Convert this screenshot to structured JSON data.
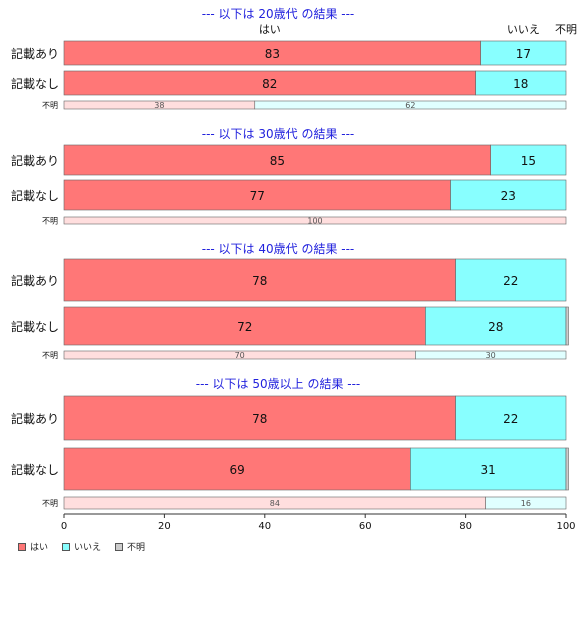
{
  "colors": {
    "yes": "#ff7777",
    "no": "#88ffff",
    "unknown": "#cccccc",
    "yes_light": "#ffdede",
    "no_light": "#e0ffff",
    "title": "#2222dd",
    "border": "#666666"
  },
  "chart_data": {
    "type": "bar",
    "orientation": "horizontal",
    "stacked": true,
    "xlim": [
      0,
      100
    ],
    "xticks": [
      "0",
      "20",
      "40",
      "60",
      "80",
      "100"
    ],
    "column_labels": {
      "yes": "はい",
      "no": "いいえ",
      "unknown": "不明"
    },
    "legend": [
      {
        "key": "yes",
        "label": "はい"
      },
      {
        "key": "no",
        "label": "いいえ"
      },
      {
        "key": "unknown",
        "label": "不明"
      }
    ],
    "panels": [
      {
        "title": "--- 以下は 20歳代 の結果 ---",
        "rows": [
          {
            "label": "記載あり",
            "yes": 83,
            "no": 17,
            "unknown": 0
          },
          {
            "label": "記載なし",
            "yes": 82,
            "no": 18,
            "unknown": 0
          },
          {
            "label": "不明",
            "small": true,
            "yes": 38,
            "no": 62,
            "unknown": 0
          }
        ]
      },
      {
        "title": "--- 以下は 30歳代 の結果 ---",
        "rows": [
          {
            "label": "記載あり",
            "yes": 85,
            "no": 15,
            "unknown": 0
          },
          {
            "label": "記載なし",
            "yes": 77,
            "no": 23,
            "unknown": 0
          },
          {
            "label": "不明",
            "small": true,
            "yes": 100,
            "no": 0,
            "unknown": 0
          }
        ]
      },
      {
        "title": "--- 以下は 40歳代 の結果 ---",
        "rows": [
          {
            "label": "記載あり",
            "yes": 78,
            "no": 22,
            "unknown": 0
          },
          {
            "label": "記載なし",
            "yes": 72,
            "no": 28,
            "unknown": 0.5
          },
          {
            "label": "不明",
            "small": true,
            "yes": 70,
            "no": 30,
            "unknown": 0
          }
        ]
      },
      {
        "title": "--- 以下は 50歳以上 の結果 ---",
        "rows": [
          {
            "label": "記載あり",
            "yes": 78,
            "no": 22,
            "unknown": 0
          },
          {
            "label": "記載なし",
            "yes": 69,
            "no": 31,
            "unknown": 0.5
          },
          {
            "label": "不明",
            "small": true,
            "yes": 84,
            "no": 16,
            "unknown": 0
          }
        ]
      }
    ]
  }
}
